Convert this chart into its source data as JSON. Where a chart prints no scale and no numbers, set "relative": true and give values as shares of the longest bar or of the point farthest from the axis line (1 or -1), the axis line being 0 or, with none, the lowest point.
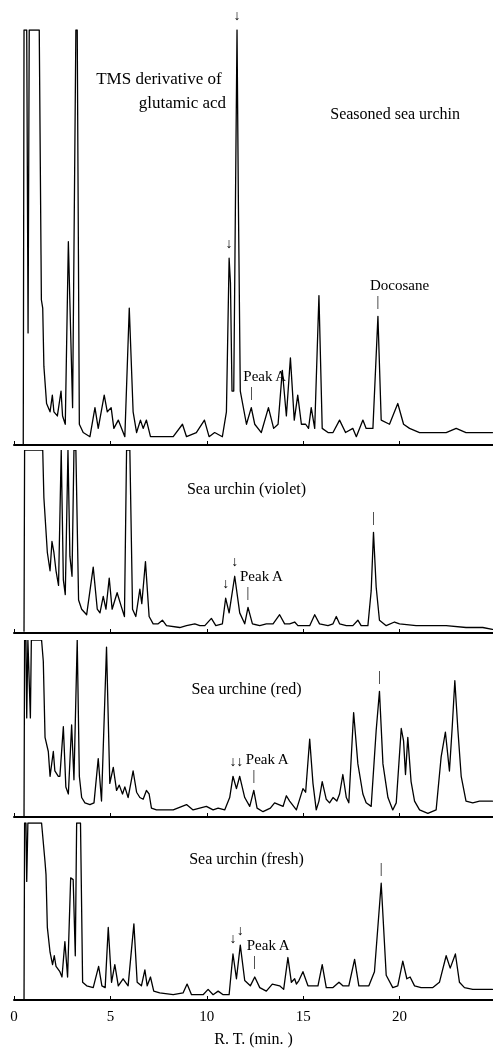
{
  "chart_data": [
    {
      "type": "line",
      "title": "Seasoned sea urchin",
      "relative": true,
      "color": "#000000",
      "xlim": [
        0,
        24.85
      ],
      "xticks": [
        0,
        5,
        10,
        15,
        20
      ],
      "tick_labels": false,
      "x": [
        0.48,
        0.52,
        0.66,
        0.73,
        0.79,
        1.31,
        1.42,
        1.49,
        1.55,
        1.69,
        1.87,
        1.99,
        2.07,
        2.25,
        2.44,
        2.52,
        2.66,
        2.82,
        2.94,
        3.04,
        3.21,
        3.28,
        3.39,
        3.59,
        3.94,
        4.2,
        4.37,
        4.68,
        4.84,
        5.04,
        5.18,
        5.41,
        5.75,
        5.98,
        6.18,
        6.36,
        6.56,
        6.7,
        6.87,
        7.08,
        7.74,
        8.26,
        8.74,
        8.95,
        9.46,
        9.88,
        10.12,
        10.41,
        10.81,
        11.02,
        11.16,
        11.23,
        11.31,
        11.4,
        11.57,
        11.64,
        11.74,
        12.06,
        12.31,
        12.49,
        12.83,
        13.2,
        13.47,
        13.7,
        13.92,
        14.13,
        14.34,
        14.54,
        14.72,
        14.91,
        15.13,
        15.28,
        15.42,
        15.6,
        15.82,
        15.99,
        16.29,
        16.55,
        16.89,
        17.2,
        17.58,
        17.76,
        18.1,
        18.27,
        18.62,
        18.88,
        19.05,
        19.48,
        19.91,
        20.21,
        20.52,
        21.04,
        21.73,
        22.42,
        22.94,
        23.45,
        24.15,
        24.82
      ],
      "values": [
        0,
        1,
        1,
        0.27,
        1,
        1,
        0.35,
        0.33,
        0.19,
        0.1,
        0.08,
        0.12,
        0.08,
        0.07,
        0.13,
        0.07,
        0.05,
        0.49,
        0.27,
        0.09,
        1,
        1,
        0.05,
        0.03,
        0.02,
        0.09,
        0.04,
        0.12,
        0.08,
        0.09,
        0.04,
        0.06,
        0.02,
        0.33,
        0.08,
        0.03,
        0.06,
        0.04,
        0.06,
        0.02,
        0.02,
        0.02,
        0.05,
        0.02,
        0.03,
        0.06,
        0.02,
        0.03,
        0.02,
        0.08,
        0.45,
        0.39,
        0.13,
        0.13,
        1,
        0.59,
        0.13,
        0.05,
        0.09,
        0.05,
        0.03,
        0.09,
        0.04,
        0.05,
        0.18,
        0.07,
        0.21,
        0.06,
        0.12,
        0.05,
        0.05,
        0.04,
        0.09,
        0.04,
        0.36,
        0.04,
        0.03,
        0.03,
        0.06,
        0.03,
        0.04,
        0.02,
        0.06,
        0.04,
        0.04,
        0.31,
        0.06,
        0.05,
        0.1,
        0.05,
        0.04,
        0.03,
        0.03,
        0.03,
        0.04,
        0.03,
        0.03,
        0.03
      ],
      "annotations": [
        {
          "text": "TMS derivative of glutamic acd",
          "x": 11.57,
          "y": 1
        },
        {
          "text": "↓",
          "x": 11.57,
          "y": 1
        },
        {
          "text": "↓",
          "x": 11.16,
          "y": 0.45
        },
        {
          "text": "|",
          "x": 12.31,
          "y": 0.09
        },
        {
          "text": "Peak A",
          "x": 12.31,
          "y": 0.09
        },
        {
          "text": "|",
          "x": 18.88,
          "y": 0.31
        },
        {
          "text": "Docosane",
          "x": 18.88,
          "y": 0.31
        }
      ]
    },
    {
      "type": "line",
      "title": "Sea urchin (violet)",
      "relative": true,
      "color": "#000000",
      "xlim": [
        0,
        24.85
      ],
      "xticks": [
        0,
        5,
        10,
        15,
        20
      ],
      "tick_labels": false,
      "x": [
        0.52,
        0.55,
        1.49,
        1.55,
        1.73,
        1.87,
        1.97,
        2.07,
        2.18,
        2.31,
        2.45,
        2.56,
        2.66,
        2.8,
        2.9,
        3.01,
        3.11,
        3.21,
        3.35,
        3.51,
        3.77,
        4.11,
        4.32,
        4.46,
        4.63,
        4.77,
        4.94,
        5.09,
        5.35,
        5.58,
        5.73,
        5.84,
        6.01,
        6.15,
        6.32,
        6.53,
        6.63,
        6.82,
        7.01,
        7.22,
        7.48,
        7.7,
        7.91,
        8.6,
        8.95,
        9.38,
        9.64,
        9.9,
        10.24,
        10.47,
        10.81,
        10.98,
        11.16,
        11.45,
        11.71,
        11.97,
        12.14,
        12.37,
        12.75,
        13.09,
        13.44,
        13.78,
        14.04,
        14.3,
        14.56,
        14.73,
        15.34,
        15.6,
        15.85,
        16.29,
        16.55,
        16.72,
        16.89,
        17.24,
        17.58,
        17.84,
        18.01,
        18.36,
        18.53,
        18.65,
        18.79,
        18.96,
        19.31,
        19.74,
        20.0,
        20.86,
        21.73,
        22.42,
        23.45,
        24.32,
        24.82
      ],
      "values": [
        0.01,
        1,
        1,
        0.74,
        0.44,
        0.34,
        0.5,
        0.44,
        0.34,
        0.26,
        1,
        0.29,
        0.21,
        1,
        0.42,
        0.31,
        1,
        1,
        0.18,
        0.13,
        0.1,
        0.36,
        0.13,
        0.11,
        0.2,
        0.13,
        0.3,
        0.13,
        0.22,
        0.14,
        0.09,
        1,
        1,
        0.13,
        0.09,
        0.24,
        0.16,
        0.39,
        0.09,
        0.05,
        0.05,
        0.07,
        0.04,
        0.03,
        0.04,
        0.05,
        0.04,
        0.04,
        0.08,
        0.04,
        0.05,
        0.19,
        0.11,
        0.31,
        0.11,
        0.05,
        0.14,
        0.05,
        0.04,
        0.05,
        0.05,
        0.1,
        0.05,
        0.05,
        0.06,
        0.04,
        0.04,
        0.1,
        0.05,
        0.04,
        0.05,
        0.09,
        0.05,
        0.04,
        0.04,
        0.07,
        0.04,
        0.04,
        0.23,
        0.55,
        0.25,
        0.07,
        0.04,
        0.06,
        0.05,
        0.04,
        0.04,
        0.04,
        0.03,
        0.03,
        0.02
      ],
      "annotations": [
        {
          "text": "↓",
          "x": 10.98,
          "y": 0.19
        },
        {
          "text": "↓",
          "x": 11.45,
          "y": 0.31
        },
        {
          "text": "|",
          "x": 12.14,
          "y": 0.14
        },
        {
          "text": "Peak A",
          "x": 12.14,
          "y": 0.14
        },
        {
          "text": "|",
          "x": 18.65,
          "y": 0.55
        }
      ]
    },
    {
      "type": "line",
      "title": "Sea urchine (red)",
      "relative": true,
      "color": "#000000",
      "xlim": [
        0,
        24.85
      ],
      "xticks": [
        0,
        5,
        10,
        15,
        20
      ],
      "tick_labels": false,
      "x": [
        0.52,
        0.55,
        0.62,
        0.66,
        0.72,
        0.85,
        0.9,
        1.43,
        1.52,
        1.61,
        1.78,
        1.87,
        2.04,
        2.12,
        2.3,
        2.38,
        2.56,
        2.69,
        2.82,
        2.99,
        3.11,
        3.28,
        3.39,
        3.51,
        3.68,
        3.94,
        4.15,
        4.37,
        4.54,
        4.8,
        4.97,
        5.15,
        5.32,
        5.46,
        5.63,
        5.75,
        5.92,
        6.18,
        6.36,
        6.53,
        6.7,
        6.87,
        7.01,
        7.13,
        7.39,
        8.26,
        8.95,
        9.29,
        9.98,
        10.33,
        10.59,
        10.93,
        11.19,
        11.36,
        11.54,
        11.71,
        11.97,
        12.23,
        12.44,
        12.61,
        12.92,
        13.3,
        13.52,
        13.96,
        14.13,
        14.3,
        14.65,
        14.99,
        15.13,
        15.34,
        15.51,
        15.68,
        15.82,
        15.99,
        16.2,
        16.37,
        16.55,
        16.75,
        16.89,
        17.06,
        17.24,
        17.37,
        17.62,
        17.84,
        18.1,
        18.27,
        18.53,
        18.79,
        18.96,
        19.14,
        19.4,
        19.65,
        19.83,
        20.09,
        20.21,
        20.31,
        20.43,
        20.6,
        20.78,
        21.04,
        21.47,
        21.9,
        22.16,
        22.38,
        22.59,
        22.73,
        22.87,
        23.03,
        23.2,
        23.45,
        23.8,
        24.15,
        24.82
      ],
      "values": [
        0,
        1,
        1,
        0.56,
        1,
        0.56,
        1,
        1,
        0.88,
        0.45,
        0.37,
        0.23,
        0.37,
        0.26,
        0.23,
        0.23,
        0.51,
        0.17,
        0.13,
        0.52,
        0.21,
        1,
        0.23,
        0.11,
        0.08,
        0.07,
        0.08,
        0.33,
        0.09,
        0.96,
        0.19,
        0.28,
        0.15,
        0.18,
        0.13,
        0.17,
        0.11,
        0.26,
        0.14,
        0.11,
        0.1,
        0.15,
        0.13,
        0.05,
        0.04,
        0.04,
        0.07,
        0.04,
        0.06,
        0.04,
        0.05,
        0.04,
        0.11,
        0.23,
        0.16,
        0.23,
        0.11,
        0.06,
        0.15,
        0.05,
        0.03,
        0.05,
        0.08,
        0.06,
        0.12,
        0.09,
        0.04,
        0.16,
        0.14,
        0.44,
        0.19,
        0.04,
        0.09,
        0.2,
        0.1,
        0.08,
        0.11,
        0.09,
        0.13,
        0.24,
        0.11,
        0.08,
        0.59,
        0.3,
        0.13,
        0.08,
        0.06,
        0.49,
        0.71,
        0.3,
        0.11,
        0.04,
        0.08,
        0.5,
        0.43,
        0.24,
        0.45,
        0.2,
        0.09,
        0.04,
        0.02,
        0.04,
        0.34,
        0.48,
        0.26,
        0.5,
        0.77,
        0.49,
        0.23,
        0.09,
        0.08,
        0.09,
        0.09
      ],
      "annotations": [
        {
          "text": "↓",
          "x": 11.36,
          "y": 0.23
        },
        {
          "text": "↓",
          "x": 11.71,
          "y": 0.23
        },
        {
          "text": "|",
          "x": 12.44,
          "y": 0.15
        },
        {
          "text": "Peak A",
          "x": 12.44,
          "y": 0.15
        },
        {
          "text": "|",
          "x": 18.96,
          "y": 0.71
        }
      ]
    },
    {
      "type": "line",
      "title": "Sea urchin (fresh)",
      "relative": true,
      "color": "#000000",
      "xlim": [
        0,
        24.85
      ],
      "xticks": [
        0,
        5,
        10,
        15,
        20
      ],
      "tick_labels": "x",
      "xlabel": "R. T. (min. )",
      "x": [
        0.52,
        0.55,
        0.62,
        0.66,
        0.72,
        1.43,
        1.61,
        1.66,
        1.73,
        1.87,
        2.0,
        2.09,
        2.18,
        2.38,
        2.49,
        2.64,
        2.78,
        2.94,
        3.07,
        3.18,
        3.25,
        3.45,
        3.56,
        3.77,
        4.11,
        4.39,
        4.56,
        4.73,
        4.89,
        5.06,
        5.23,
        5.41,
        5.66,
        5.92,
        6.22,
        6.39,
        6.61,
        6.79,
        6.91,
        7.08,
        7.25,
        7.56,
        8.26,
        8.77,
        8.98,
        9.21,
        9.81,
        10.07,
        10.33,
        10.59,
        10.85,
        11.16,
        11.36,
        11.54,
        11.74,
        11.97,
        12.26,
        12.49,
        12.75,
        13.09,
        13.4,
        13.78,
        13.99,
        14.21,
        14.39,
        14.56,
        14.65,
        14.78,
        14.99,
        15.25,
        15.51,
        15.77,
        15.99,
        16.2,
        16.55,
        16.86,
        17.06,
        17.37,
        17.67,
        17.89,
        18.1,
        18.41,
        18.7,
        19.05,
        19.31,
        19.65,
        19.91,
        20.17,
        20.38,
        20.55,
        20.78,
        21.12,
        21.73,
        22.07,
        22.42,
        22.63,
        22.9,
        23.11,
        23.37,
        23.8,
        24.32,
        24.82
      ],
      "values": [
        0,
        1,
        1,
        0.67,
        1,
        1,
        0.78,
        0.71,
        0.41,
        0.27,
        0.2,
        0.25,
        0.19,
        0.16,
        0.13,
        0.33,
        0.13,
        0.69,
        0.68,
        0.25,
        1,
        1,
        0.1,
        0.08,
        0.07,
        0.19,
        0.08,
        0.07,
        0.41,
        0.1,
        0.2,
        0.08,
        0.12,
        0.08,
        0.43,
        0.1,
        0.08,
        0.17,
        0.08,
        0.13,
        0.05,
        0.04,
        0.03,
        0.04,
        0.09,
        0.03,
        0.03,
        0.06,
        0.03,
        0.05,
        0.03,
        0.03,
        0.26,
        0.12,
        0.31,
        0.11,
        0.08,
        0.13,
        0.07,
        0.05,
        0.09,
        0.08,
        0.06,
        0.24,
        0.1,
        0.12,
        0.09,
        0.11,
        0.16,
        0.08,
        0.08,
        0.08,
        0.2,
        0.07,
        0.07,
        0.1,
        0.08,
        0.08,
        0.23,
        0.08,
        0.08,
        0.08,
        0.16,
        0.66,
        0.14,
        0.07,
        0.08,
        0.22,
        0.12,
        0.13,
        0.08,
        0.07,
        0.07,
        0.1,
        0.25,
        0.18,
        0.26,
        0.1,
        0.07,
        0.06,
        0.06,
        0.06
      ],
      "annotations": [
        {
          "text": "↓",
          "x": 11.36,
          "y": 0.26
        },
        {
          "text": "↓",
          "x": 11.74,
          "y": 0.31
        },
        {
          "text": "|",
          "x": 12.49,
          "y": 0.13
        },
        {
          "text": "Peak A",
          "x": 12.49,
          "y": 0.13
        },
        {
          "text": "|",
          "x": 19.05,
          "y": 0.66
        }
      ]
    }
  ]
}
